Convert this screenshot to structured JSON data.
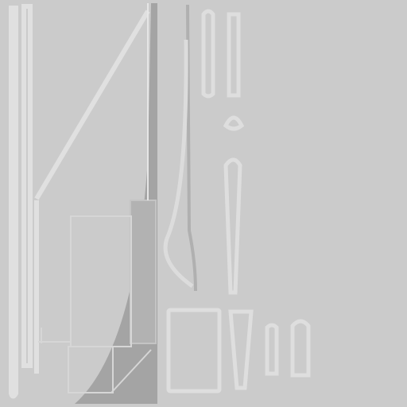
{
  "colors": {
    "background": "#cbcbcb",
    "outline_light": "#e2e2e2",
    "outline_dark": "#a4a4a4",
    "fill_dark": "#a3a3a3",
    "fill_mid": "#b9b9b9"
  },
  "texture_pieces": [
    "left-strip",
    "left-strip-inner",
    "diagonal-brace",
    "right-curve-panel",
    "boxed-frame",
    "curved-blade",
    "small-capsule-top",
    "small-capsule-top-2",
    "small-ring",
    "long-capsule",
    "square-patch",
    "tapered-patch",
    "tiny-capsule",
    "bottom-capsule"
  ]
}
